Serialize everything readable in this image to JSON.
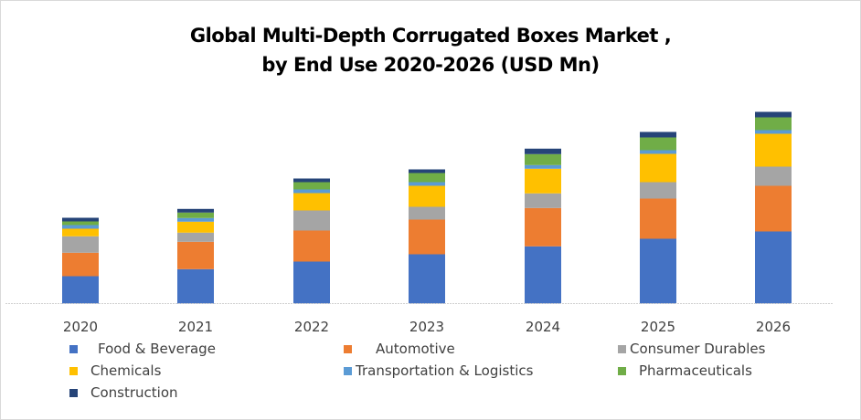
{
  "chart_data": {
    "type": "bar",
    "stacked": true,
    "title": "Global Multi-Depth Corrugated Boxes Market , by End Use 2020-2026 (USD Mn)",
    "title_lines": [
      "Global Multi-Depth Corrugated Boxes Market ,",
      "by End Use 2020-2026 (USD Mn)"
    ],
    "xlabel": "",
    "ylabel": "",
    "y_axis_shown": false,
    "value_units": "relative (no y-axis scale shown; estimated from bar proportions)",
    "grid": false,
    "legend_position": "bottom",
    "categories": [
      "2020",
      "2021",
      "2022",
      "2023",
      "2024",
      "2025",
      "2026"
    ],
    "series": [
      {
        "name": "Food & Beverage",
        "color": "#4472C4",
        "values": [
          30,
          37.7,
          46,
          54,
          62.7,
          71,
          79
        ]
      },
      {
        "name": "Automotive",
        "color": "#ED7D31",
        "values": [
          25.7,
          30,
          34,
          38,
          42,
          44,
          50
        ]
      },
      {
        "name": "Consumer Durables",
        "color": "#A5A5A5",
        "values": [
          18,
          10,
          22,
          14,
          16,
          18,
          21
        ]
      },
      {
        "name": "Chemicals",
        "color": "#FFC000",
        "values": [
          8.3,
          12,
          19,
          23,
          27,
          31,
          36
        ]
      },
      {
        "name": "Transportation & Logistics",
        "color": "#5B9BD5",
        "values": [
          4,
          4,
          4,
          4,
          4,
          4,
          4
        ]
      },
      {
        "name": "Pharmaceuticals",
        "color": "#70AD47",
        "values": [
          4,
          6,
          8,
          10,
          12,
          14,
          14
        ]
      },
      {
        "name": "Construction",
        "color": "#264478",
        "values": [
          4,
          4,
          4,
          4,
          6,
          6,
          6
        ]
      }
    ],
    "ylim": [
      0,
      220
    ]
  }
}
